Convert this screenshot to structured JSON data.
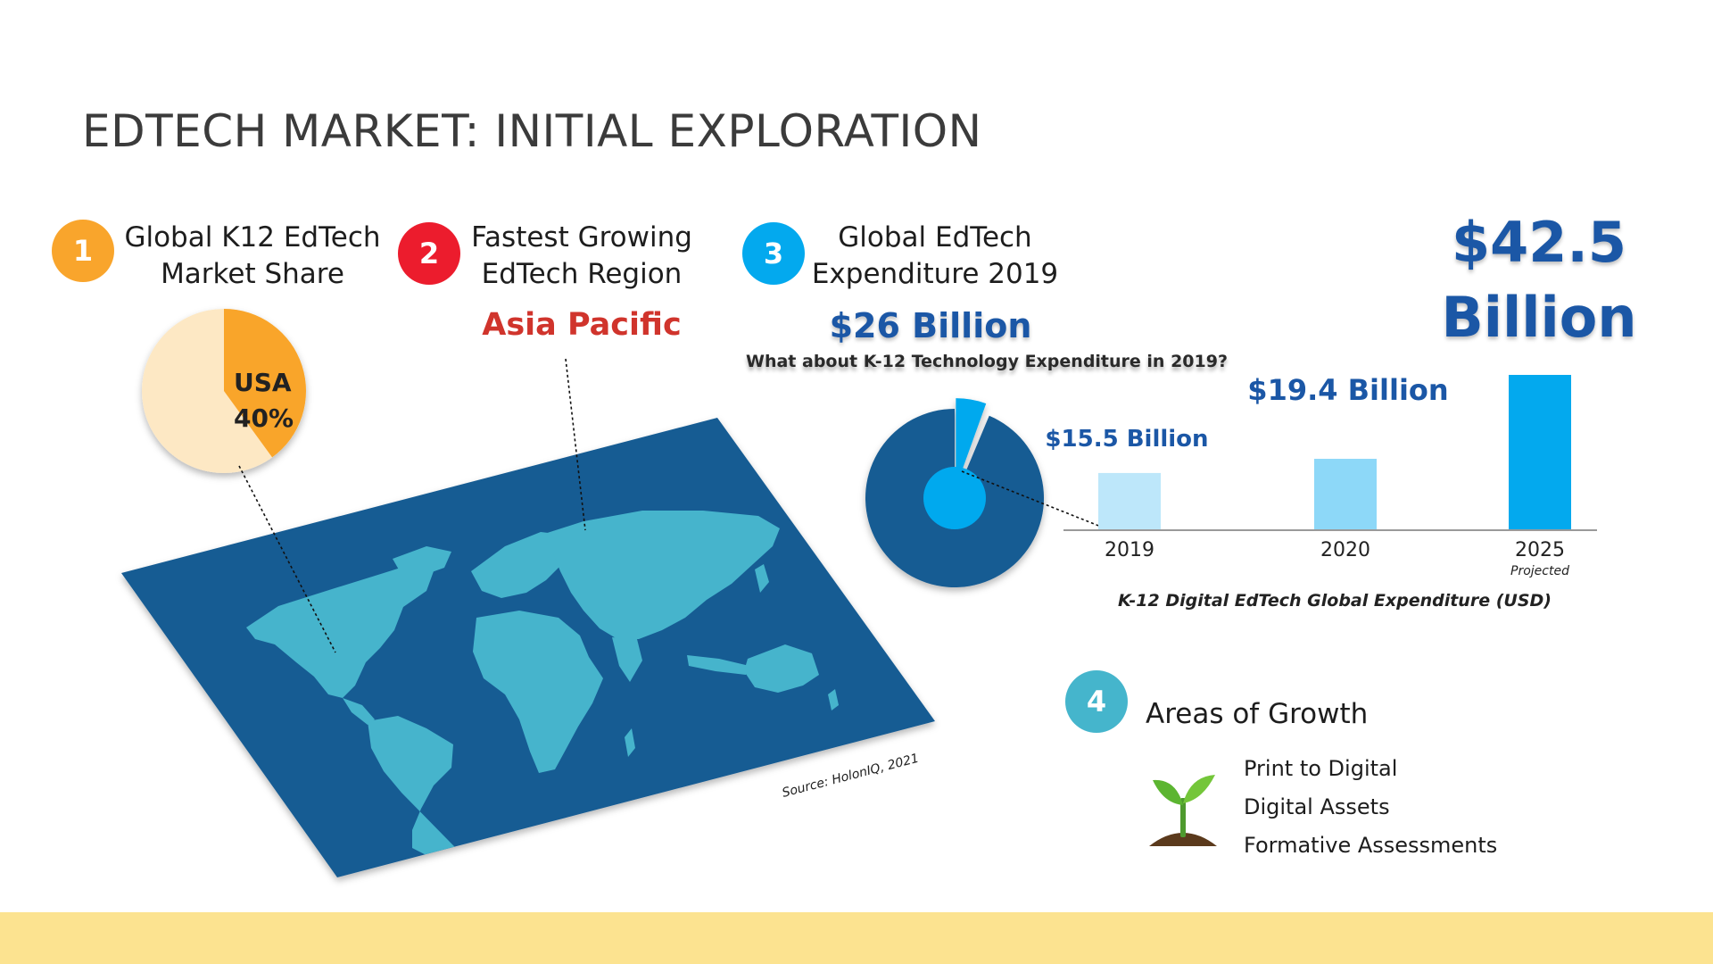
{
  "title": "EDTECH MARKET: INITIAL EXPLORATION",
  "colors": {
    "orange": "#f9a52c",
    "red": "#ec1c2d",
    "sky": "#03a9ee",
    "teal": "#45b5cc",
    "navy": "#165b93",
    "brand_blue": "#1b57a6",
    "footer": "#fce390",
    "land": "#46b4cc"
  },
  "section1": {
    "number": "1",
    "heading_line1": "Global K12 EdTech",
    "heading_line2": "Market Share",
    "pie_label_line1": "USA",
    "pie_label_line2": "40%",
    "pie_share_percent": 40
  },
  "section2": {
    "number": "2",
    "heading_line1": "Fastest Growing",
    "heading_line2": "EdTech Region",
    "region": "Asia Pacific"
  },
  "section3": {
    "number": "3",
    "heading_line1": "Global EdTech",
    "heading_line2": "Expenditure 2019",
    "value": "$26 Billion",
    "question": "What about K-12 Technology Expenditure in 2019?",
    "k12_share_percent": 5.5
  },
  "chart_data": {
    "type": "bar",
    "title": "K-12 Digital EdTech Global Expenditure (USD)",
    "categories": [
      "2019",
      "2020",
      "2025"
    ],
    "category_notes": [
      "",
      "",
      "Projected"
    ],
    "values": [
      15.5,
      19.4,
      42.5
    ],
    "value_labels": [
      "$15.5 Billion",
      "$19.4 Billion",
      "$42.5 Billion"
    ],
    "big_label_line1": "$42.5",
    "big_label_line2": "Billion",
    "unit": "Billion USD",
    "ylim": [
      0,
      42.5
    ],
    "bar_colors": [
      "#bde7fa",
      "#8dd8f8",
      "#03a9ee"
    ],
    "grid": false,
    "legend": "none"
  },
  "source": "Source: HolonIQ, 2021",
  "section4": {
    "number": "4",
    "heading": "Areas of Growth",
    "items": [
      "Print to Digital",
      "Digital Assets",
      "Formative Assessments"
    ]
  }
}
